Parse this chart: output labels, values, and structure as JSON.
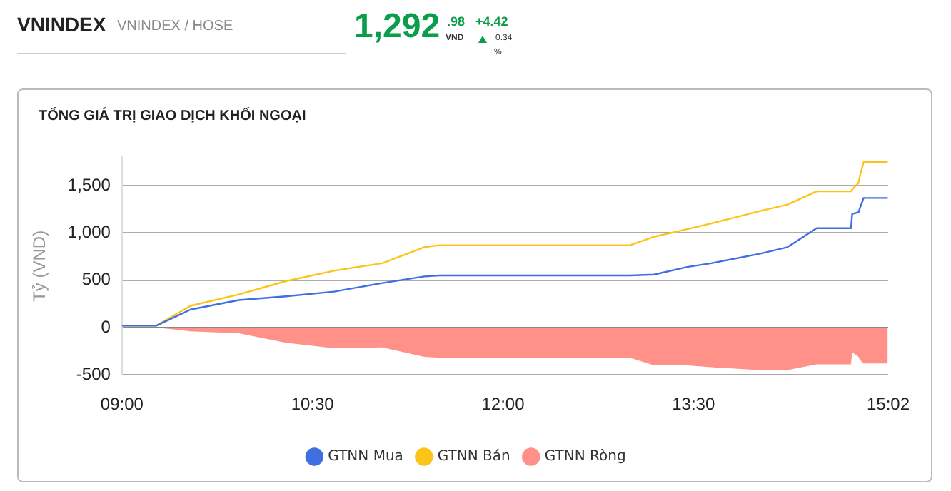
{
  "chart_data": {
    "type": "line",
    "title": "TỔNG GIÁ TRỊ GIAO DỊCH KHỐI NGOẠI",
    "ylabel": "Tỷ (VND)",
    "annotations": [
      "VNINDEX",
      "VNINDEX / HOSE",
      "1,292",
      ".98",
      "VND",
      "+4.42",
      "0.34",
      "%"
    ],
    "x": [
      9.0,
      9.27,
      9.54,
      9.92,
      10.29,
      10.67,
      11.05,
      11.38,
      11.5,
      13.0,
      13.19,
      13.45,
      13.64,
      14.02,
      14.24,
      14.47,
      14.74,
      14.75,
      14.8,
      14.81,
      14.84,
      15.03
    ],
    "series": [
      {
        "name": "GTNN Mua",
        "color": "#3f6fe0",
        "type": "line",
        "values": [
          20,
          20,
          190,
          290,
          330,
          380,
          470,
          540,
          550,
          550,
          560,
          640,
          680,
          780,
          850,
          1050,
          1050,
          1200,
          1220,
          1260,
          1370,
          1370
        ]
      },
      {
        "name": "GTNN Bán",
        "color": "#fcc419",
        "type": "line",
        "values": [
          20,
          20,
          230,
          350,
          490,
          600,
          680,
          850,
          870,
          870,
          960,
          1040,
          1100,
          1230,
          1300,
          1440,
          1440,
          1460,
          1530,
          1600,
          1750,
          1750
        ]
      },
      {
        "name": "GTNN Ròng",
        "color": "#ff9188",
        "type": "area",
        "values": [
          0,
          0,
          -40,
          -60,
          -160,
          -220,
          -210,
          -310,
          -320,
          -320,
          -400,
          -400,
          -420,
          -450,
          -450,
          -390,
          -390,
          -260,
          -310,
          -340,
          -380,
          -380
        ]
      }
    ],
    "xlim": [
      9.0,
      15.033
    ],
    "xticks": [
      {
        "value": 9.0,
        "label": "09:00"
      },
      {
        "value": 10.5,
        "label": "10:30"
      },
      {
        "value": 12.0,
        "label": "12:00"
      },
      {
        "value": 13.5,
        "label": "13:30"
      },
      {
        "value": 15.033,
        "label": "15:02"
      }
    ],
    "ylim": [
      -500,
      1800
    ],
    "yticks": [
      {
        "value": -500,
        "label": "-500"
      },
      0,
      {
        "value": 500,
        "label": "500"
      },
      {
        "value": 1000,
        "label": "1,000"
      },
      {
        "value": 1500,
        "label": "1,500"
      }
    ],
    "grid": "y",
    "legend": "bottom",
    "marker": "none",
    "line_style": "solid"
  }
}
